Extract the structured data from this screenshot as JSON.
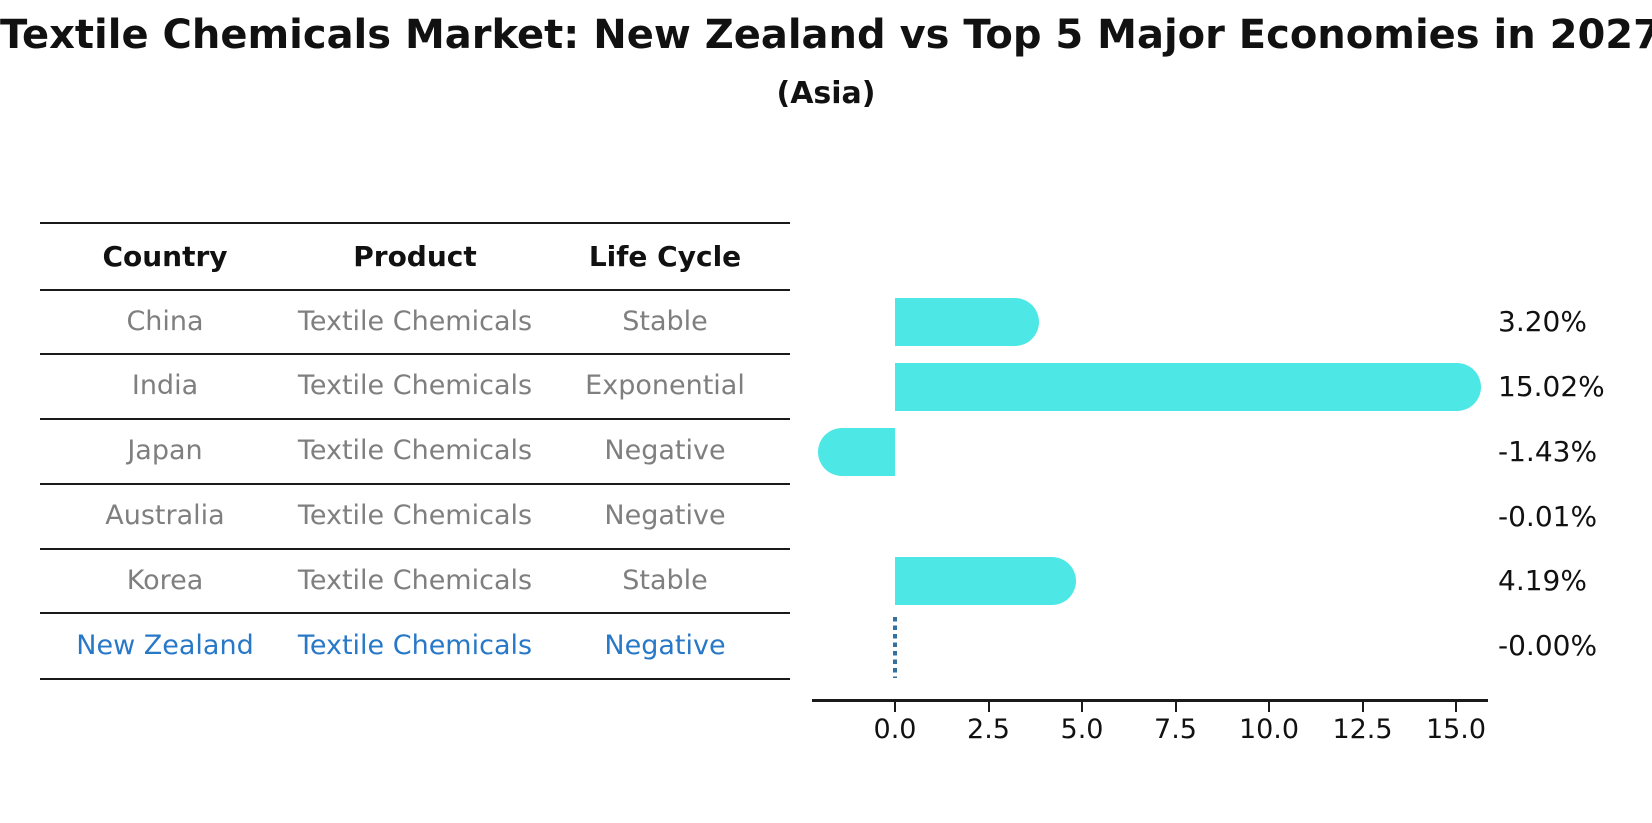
{
  "title": "Textile Chemicals Market: New Zealand vs Top 5 Major Economies in 2027",
  "subtitle": "(Asia)",
  "table": {
    "headers": [
      "Country",
      "Product",
      "Life Cycle"
    ],
    "rows": [
      {
        "country": "China",
        "product": "Textile Chemicals",
        "life_cycle": "Stable",
        "highlighted": false
      },
      {
        "country": "India",
        "product": "Textile Chemicals",
        "life_cycle": "Exponential",
        "highlighted": false
      },
      {
        "country": "Japan",
        "product": "Textile Chemicals",
        "life_cycle": "Negative",
        "highlighted": false
      },
      {
        "country": "Australia",
        "product": "Textile Chemicals",
        "life_cycle": "Negative",
        "highlighted": false
      },
      {
        "country": "Korea",
        "product": "Textile Chemicals",
        "life_cycle": "Stable",
        "highlighted": false
      },
      {
        "country": "New Zealand",
        "product": "Textile Chemicals",
        "life_cycle": "Negative",
        "highlighted": true
      }
    ]
  },
  "chart_data": {
    "type": "bar",
    "orientation": "horizontal",
    "title": "",
    "xlabel": "",
    "ylabel": "",
    "categories": [
      "China",
      "India",
      "Japan",
      "Australia",
      "Korea",
      "New Zealand"
    ],
    "values": [
      3.2,
      15.02,
      -1.43,
      -0.01,
      4.19,
      -0.0
    ],
    "value_labels": [
      "3.20%",
      "15.02%",
      "-1.43%",
      "-0.01%",
      "4.19%",
      "-0.00%"
    ],
    "x_ticks": [
      "0.0",
      "2.5",
      "5.0",
      "7.5",
      "10.0",
      "12.5",
      "15.0"
    ],
    "x_tick_values": [
      0,
      2.5,
      5,
      7.5,
      10,
      12.5,
      15
    ],
    "xlim": [
      -2.3,
      16.0
    ],
    "grid": false,
    "legend": false,
    "bar_color": "#4de8e6",
    "highlight_line_color": "#336f9f",
    "highlight_text_color": "#2878c8",
    "zero_line_category": "New Zealand"
  }
}
